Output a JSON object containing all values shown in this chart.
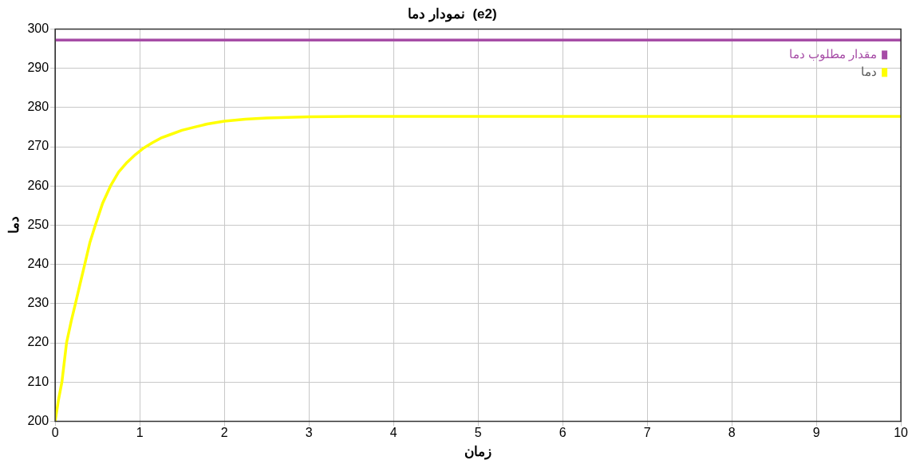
{
  "chart_data": {
    "type": "line",
    "title": "نمودار دما  (e2)",
    "xlabel": "زمان",
    "ylabel": "دما",
    "xlim": [
      0,
      10
    ],
    "xticks": [
      0,
      1,
      2,
      3,
      4,
      5,
      6,
      7,
      8,
      9,
      10
    ],
    "ylim": [
      200,
      300
    ],
    "yticks": [
      200,
      210,
      220,
      230,
      240,
      250,
      260,
      270,
      280,
      290,
      300
    ],
    "grid": true,
    "legend": "top right",
    "marker": "none",
    "line_style": "solid",
    "series": [
      {
        "name": "مقدار مطلوب دما",
        "color": "#a64ca6",
        "x": [
          0,
          10
        ],
        "values": [
          297.2,
          297.2
        ]
      },
      {
        "name": "دما",
        "color": "#ffff00",
        "x": [
          0,
          0.04,
          0.08,
          0.135,
          0.19,
          0.24,
          0.3,
          0.35,
          0.41,
          0.475,
          0.56,
          0.655,
          0.75,
          0.85,
          0.95,
          1.05,
          1.15,
          1.25,
          1.35,
          1.5,
          1.65,
          1.8,
          2,
          2.25,
          2.5,
          3,
          3.5,
          4,
          5,
          6,
          7,
          8,
          9,
          10
        ],
        "values": [
          200,
          205.5,
          210,
          220,
          225.5,
          230,
          235.5,
          240,
          245.5,
          250,
          255.5,
          260,
          263.5,
          266,
          268,
          269.7,
          271,
          272.2,
          273,
          274.2,
          275,
          275.8,
          276.5,
          277,
          277.3,
          277.6,
          277.7,
          277.7,
          277.7,
          277.7,
          277.7,
          277.7,
          277.7,
          277.7
        ]
      }
    ]
  }
}
